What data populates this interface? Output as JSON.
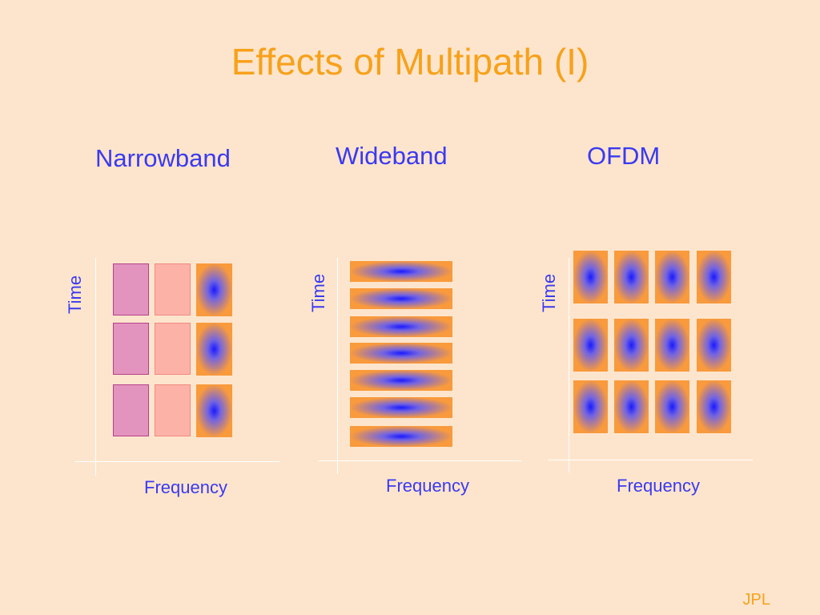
{
  "colors": {
    "background": "#fde5cd",
    "title": "#f7a11a",
    "label": "#3a3af0",
    "orange": "#f99a3c",
    "blue": "#1a1aff",
    "pink_dark": "#e294be",
    "pink_dark_border": "#b8408a",
    "pink_light": "#fdb2a8",
    "pink_light_border": "#f08a80",
    "footer": "#f7a11a"
  },
  "title": "Effects of Multipath (I)",
  "panels": [
    {
      "id": "narrowband",
      "label": "Narrowband",
      "y_axis": "Time",
      "x_axis": "Frequency"
    },
    {
      "id": "wideband",
      "label": "Wideband",
      "y_axis": "Time",
      "x_axis": "Frequency"
    },
    {
      "id": "ofdm",
      "label": "OFDM",
      "y_axis": "Time",
      "x_axis": "Frequency"
    }
  ],
  "footer": "JPL"
}
